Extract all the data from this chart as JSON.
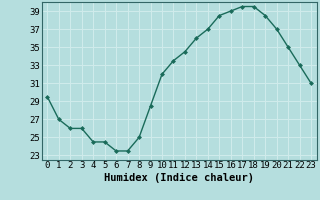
{
  "x": [
    0,
    1,
    2,
    3,
    4,
    5,
    6,
    7,
    8,
    9,
    10,
    11,
    12,
    13,
    14,
    15,
    16,
    17,
    18,
    19,
    20,
    21,
    22,
    23
  ],
  "y": [
    29.5,
    27,
    26,
    26,
    24.5,
    24.5,
    23.5,
    23.5,
    25,
    28.5,
    32,
    33.5,
    34.5,
    36,
    37,
    38.5,
    39,
    39.5,
    39.5,
    38.5,
    37,
    35,
    33,
    31
  ],
  "line_color": "#1a6b5a",
  "marker": "D",
  "marker_size": 2.0,
  "bg_color": "#b5dede",
  "grid_color": "#d0ecec",
  "title": "",
  "xlabel": "Humidex (Indice chaleur)",
  "ylabel": "",
  "xlim": [
    -0.5,
    23.5
  ],
  "ylim": [
    22.5,
    40
  ],
  "yticks": [
    23,
    25,
    27,
    29,
    31,
    33,
    35,
    37,
    39
  ],
  "xticks": [
    0,
    1,
    2,
    3,
    4,
    5,
    6,
    7,
    8,
    9,
    10,
    11,
    12,
    13,
    14,
    15,
    16,
    17,
    18,
    19,
    20,
    21,
    22,
    23
  ],
  "xlabel_fontsize": 7.5,
  "tick_fontsize": 6.5,
  "line_width": 1.0,
  "spine_color": "#336666"
}
